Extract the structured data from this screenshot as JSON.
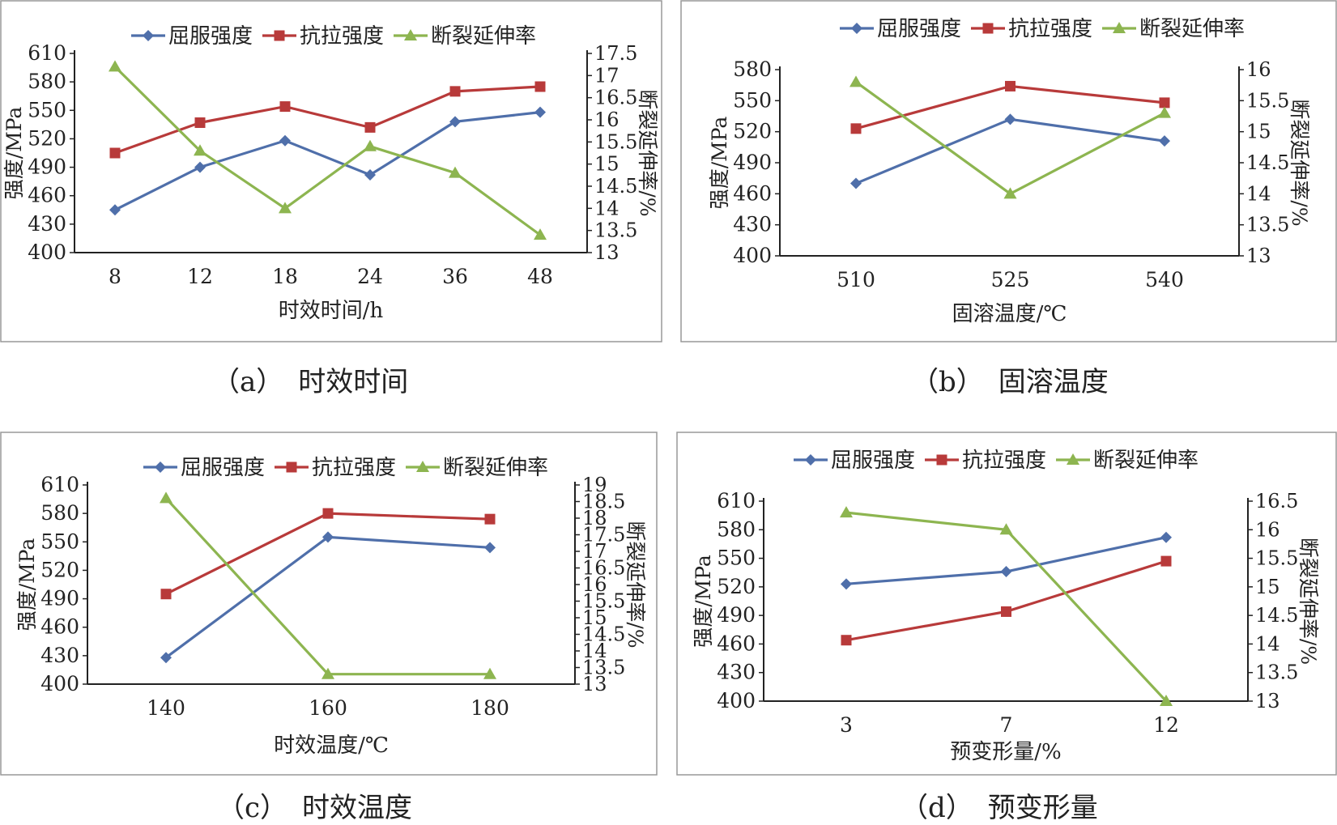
{
  "colors": {
    "yield": "#4F6FAA",
    "tensile": "#B83A3A",
    "elong": "#8DB550",
    "frame": "#999999",
    "axis": "#222222"
  },
  "chart_data": [
    {
      "id": "a",
      "type": "line",
      "caption_label": "（a）",
      "caption_text": "时效时间",
      "xlabel": "时效时间/h",
      "ylabel": "强度/MPa",
      "y2label": "断裂延伸率/%",
      "categories": [
        "8",
        "12",
        "18",
        "24",
        "36",
        "48"
      ],
      "ylim": [
        400,
        610
      ],
      "yticks": [
        400,
        430,
        460,
        490,
        520,
        550,
        580,
        610
      ],
      "y2lim": [
        13,
        17.5
      ],
      "y2ticks": [
        13,
        13.5,
        14,
        14.5,
        15,
        15.5,
        16,
        16.5,
        17,
        17.5
      ],
      "legend": "top",
      "series": [
        {
          "name": "屈服强度",
          "axis": "left",
          "marker": "diamond",
          "values": [
            445,
            490,
            518,
            482,
            538,
            548
          ]
        },
        {
          "name": "抗拉强度",
          "axis": "left",
          "marker": "square",
          "values": [
            505,
            537,
            554,
            532,
            570,
            575
          ]
        },
        {
          "name": "断裂延伸率",
          "axis": "right",
          "marker": "triangle",
          "values": [
            17.2,
            15.3,
            14.0,
            15.4,
            14.8,
            13.4
          ]
        }
      ]
    },
    {
      "id": "b",
      "type": "line",
      "caption_label": "（b）",
      "caption_text": "固溶温度",
      "xlabel": "固溶温度/℃",
      "ylabel": "强度/MPa",
      "y2label": "断裂延伸率/%",
      "categories": [
        "510",
        "525",
        "540"
      ],
      "ylim": [
        400,
        580
      ],
      "yticks": [
        400,
        430,
        460,
        490,
        520,
        550,
        580
      ],
      "y2lim": [
        13,
        16
      ],
      "y2ticks": [
        13,
        13.5,
        14,
        14.5,
        15,
        15.5,
        16
      ],
      "legend": "top",
      "series": [
        {
          "name": "屈服强度",
          "axis": "left",
          "marker": "diamond",
          "values": [
            470,
            532,
            511
          ]
        },
        {
          "name": "抗拉强度",
          "axis": "left",
          "marker": "square",
          "values": [
            523,
            564,
            548
          ]
        },
        {
          "name": "断裂延伸率",
          "axis": "right",
          "marker": "triangle",
          "values": [
            15.8,
            14.0,
            15.3
          ]
        }
      ]
    },
    {
      "id": "c",
      "type": "line",
      "caption_label": "（c）",
      "caption_text": "时效温度",
      "xlabel": "时效温度/℃",
      "ylabel": "强度/MPa",
      "y2label": "断裂延伸率/%",
      "categories": [
        "140",
        "160",
        "180"
      ],
      "ylim": [
        400,
        610
      ],
      "yticks": [
        400,
        430,
        460,
        490,
        520,
        550,
        580,
        610
      ],
      "y2lim": [
        13,
        19
      ],
      "y2ticks": [
        13,
        13.5,
        14,
        14.5,
        15,
        15.5,
        16,
        16.5,
        17,
        17.5,
        18,
        18.5,
        19
      ],
      "legend": "top",
      "series": [
        {
          "name": "屈服强度",
          "axis": "left",
          "marker": "diamond",
          "values": [
            428,
            555,
            544
          ]
        },
        {
          "name": "抗拉强度",
          "axis": "left",
          "marker": "square",
          "values": [
            495,
            580,
            574
          ]
        },
        {
          "name": "断裂延伸率",
          "axis": "right",
          "marker": "triangle",
          "values": [
            18.6,
            13.3,
            13.3
          ]
        }
      ]
    },
    {
      "id": "d",
      "type": "line",
      "caption_label": "（d）",
      "caption_text": "预变形量",
      "xlabel": "预变形量/%",
      "ylabel": "强度/MPa",
      "y2label": "断裂延伸率/%",
      "categories": [
        "3",
        "7",
        "12"
      ],
      "ylim": [
        400,
        610
      ],
      "yticks": [
        400,
        430,
        460,
        490,
        520,
        550,
        580,
        610
      ],
      "y2lim": [
        13,
        16.5
      ],
      "y2ticks": [
        13,
        13.5,
        14,
        14.5,
        15,
        15.5,
        16,
        16.5
      ],
      "legend": "top",
      "series": [
        {
          "name": "屈服强度",
          "axis": "left",
          "marker": "diamond",
          "values": [
            523,
            536,
            572
          ]
        },
        {
          "name": "抗拉强度",
          "axis": "left",
          "marker": "square",
          "values": [
            464,
            494,
            547
          ]
        },
        {
          "name": "断裂延伸率",
          "axis": "right",
          "marker": "triangle",
          "values": [
            16.3,
            16.0,
            13.0
          ]
        }
      ]
    }
  ]
}
